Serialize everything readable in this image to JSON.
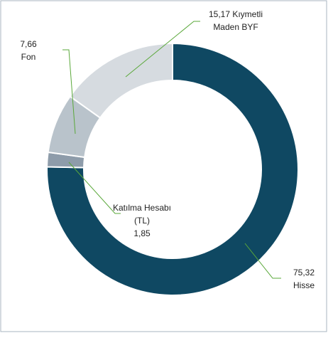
{
  "chart_data": {
    "type": "donut",
    "categories": [
      "Hisse",
      "Katılma Hesabı (TL)",
      "Fon",
      "Kıymetli Maden BYF"
    ],
    "values": [
      75.32,
      1.85,
      7.66,
      15.17
    ],
    "value_labels": [
      "75,32",
      "1,85",
      "7,66",
      "15,17"
    ],
    "colors": [
      "#0f4862",
      "#8e9caa",
      "#b9c3cb",
      "#d6dbe0"
    ]
  }
}
